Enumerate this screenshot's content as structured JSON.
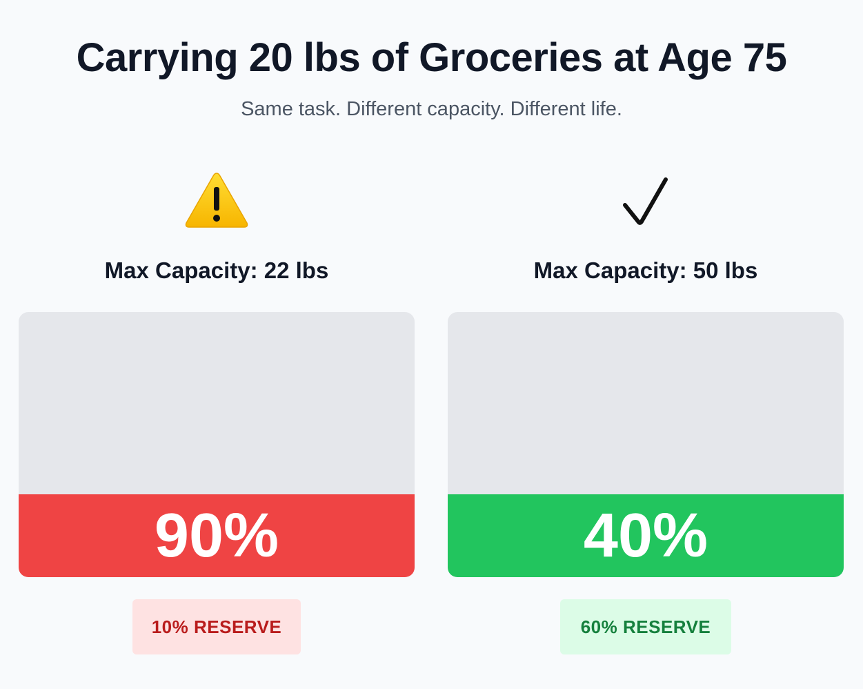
{
  "title": "Carrying 20 lbs of Groceries at Age 75",
  "subtitle": "Same task. Different capacity. Different life.",
  "panels": [
    {
      "icon": "warning-icon",
      "capacity_label": "Max Capacity: 22 lbs",
      "effort_percent": 90,
      "effort_label": "90%",
      "reserve_label": "10% RESERVE",
      "color": "#ef4444"
    },
    {
      "icon": "checkmark-icon",
      "capacity_label": "Max Capacity: 50 lbs",
      "effort_percent": 40,
      "effort_label": "40%",
      "reserve_label": "60% RESERVE",
      "color": "#22c55e"
    }
  ]
}
